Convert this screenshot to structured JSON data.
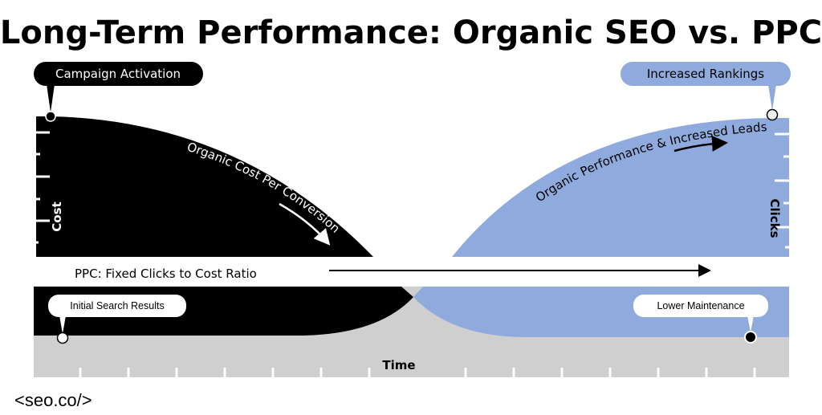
{
  "title": "Long-Term Performance: Organic SEO vs. PPC",
  "colors": {
    "black": "#000000",
    "blue": "#8faadc",
    "gray": "#cfcfcf"
  },
  "callouts": {
    "campaign_activation": "Campaign Activation",
    "increased_rankings": "Increased Rankings",
    "initial_search_results": "Initial Search Results",
    "lower_maintenance": "Lower Maintenance"
  },
  "curve_labels": {
    "organic_cost": "Organic Cost Per Conversion",
    "organic_performance": "Organic Performance & Increased Leads"
  },
  "ppc_label": "PPC: Fixed Clicks to Cost Ratio",
  "axes": {
    "left": "Cost",
    "right": "Clicks",
    "bottom": "Time"
  },
  "logo": "<seo.co/>"
}
